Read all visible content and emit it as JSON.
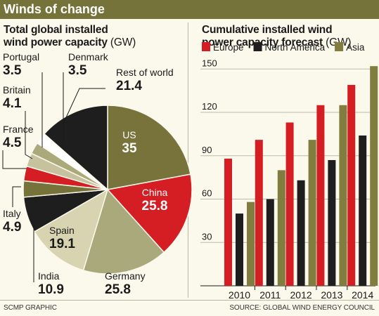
{
  "header": {
    "title": "Winds of change"
  },
  "left_panel": {
    "title_line1": "Total global installed",
    "title_line2": "wind power capacity",
    "unit": "(GW)"
  },
  "right_panel": {
    "title_line1": "Cumulative installed wind",
    "title_line2": "power capacity forecast",
    "unit": "(GW)"
  },
  "footer": {
    "credit": "SCMP GRAPHIC",
    "source": "SOURCE: GLOBAL WIND ENERGY COUNCIL"
  },
  "chart_data": [
    {
      "type": "pie",
      "unit": "GW",
      "slices": [
        {
          "label": "US",
          "value": 35,
          "value_text": "35",
          "color": "#77733a",
          "label_color": "#ffffff"
        },
        {
          "label": "China",
          "value": 25.8,
          "value_text": "25.8",
          "color": "#d41e24",
          "label_color": "#ffffff"
        },
        {
          "label": "Germany",
          "value": 25.8,
          "value_text": "25.8",
          "color": "#a9a97b",
          "label_color": "#1a1a1a"
        },
        {
          "label": "Spain",
          "value": 19.1,
          "value_text": "19.1",
          "color": "#d8d3b0",
          "label_color": "#1a1a1a"
        },
        {
          "label": "India",
          "value": 10.9,
          "value_text": "10.9",
          "color": "#1e1e1e",
          "label_color": "#1a1a1a"
        },
        {
          "label": "Italy",
          "value": 4.9,
          "value_text": "4.9",
          "color": "#75723a",
          "label_color": "#1a1a1a"
        },
        {
          "label": "France",
          "value": 4.5,
          "value_text": "4.5",
          "color": "#d41e24",
          "label_color": "#1a1a1a"
        },
        {
          "label": "Britain",
          "value": 4.1,
          "value_text": "4.1",
          "color": "#c6c29e",
          "label_color": "#1a1a1a"
        },
        {
          "label": "Portugal",
          "value": 3.5,
          "value_text": "3.5",
          "color": "#a9a97b",
          "label_color": "#1a1a1a"
        },
        {
          "label": "Denmark",
          "value": 3.5,
          "value_text": "3.5",
          "color": "#ffffff",
          "label_color": "#1a1a1a"
        },
        {
          "label": "Rest of world",
          "value": 21.4,
          "value_text": "21.4",
          "color": "#1e1e1e",
          "label_color": "#1a1a1a"
        }
      ]
    },
    {
      "type": "bar",
      "categories": [
        "2010",
        "2011",
        "2012",
        "2013",
        "2014"
      ],
      "series": [
        {
          "name": "Europe",
          "color": "#d41e24",
          "values": [
            88,
            101,
            113,
            125,
            139
          ]
        },
        {
          "name": "North America",
          "color": "#1e1e1e",
          "values": [
            50,
            60,
            73,
            87,
            104
          ]
        },
        {
          "name": "Asia",
          "color": "#807d3e",
          "values": [
            58,
            80,
            101,
            125,
            152
          ]
        }
      ],
      "ylim": [
        0,
        155
      ],
      "yticks": [
        30,
        60,
        90,
        120,
        150
      ],
      "grid": true,
      "legend_placement": "top"
    }
  ]
}
